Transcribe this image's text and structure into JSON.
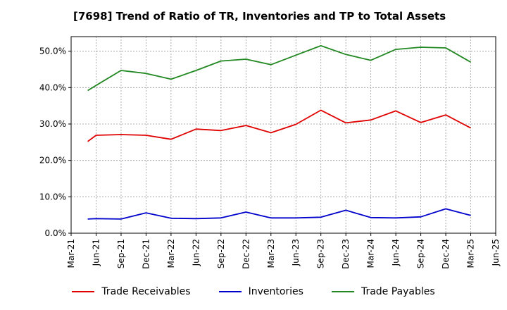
{
  "chart_data": {
    "type": "line",
    "title": "[7698]  Trend of Ratio of TR, Inventories and TP to Total Assets",
    "xlabel": "",
    "ylabel": "",
    "x_ticks": [
      "Mar-21",
      "Jun-21",
      "Sep-21",
      "Dec-21",
      "Mar-22",
      "Jun-22",
      "Sep-22",
      "Dec-22",
      "Mar-23",
      "Jun-23",
      "Sep-23",
      "Dec-23",
      "Mar-24",
      "Jun-24",
      "Sep-24",
      "Dec-24",
      "Mar-25",
      "Jun-25"
    ],
    "x": [
      "May-21",
      "Jun-21",
      "Sep-21",
      "Dec-21",
      "Mar-22",
      "Jun-22",
      "Sep-22",
      "Dec-22",
      "Mar-23",
      "Jun-23",
      "Sep-23",
      "Dec-23",
      "Mar-24",
      "Jun-24",
      "Sep-24",
      "Dec-24",
      "Mar-25"
    ],
    "ylim": [
      0,
      54
    ],
    "y_ticks": [
      0,
      10,
      20,
      30,
      40,
      50
    ],
    "y_tick_labels": [
      "0.0%",
      "10.0%",
      "20.0%",
      "30.0%",
      "40.0%",
      "50.0%"
    ],
    "grid": true,
    "legend_position": "bottom",
    "series": [
      {
        "name": "Trade Receivables",
        "color": "#e00000",
        "values": [
          25.2,
          26.9,
          27.1,
          26.9,
          25.8,
          28.6,
          28.2,
          29.6,
          27.6,
          29.9,
          33.8,
          30.3,
          31.1,
          33.6,
          30.4,
          32.5,
          28.9
        ]
      },
      {
        "name": "Inventories",
        "color": "#0000cc",
        "values": [
          3.9,
          4.0,
          3.9,
          5.6,
          4.1,
          4.0,
          4.2,
          5.8,
          4.2,
          4.2,
          4.4,
          6.3,
          4.3,
          4.2,
          4.5,
          6.7,
          4.9
        ]
      },
      {
        "name": "Trade Payables",
        "color": "#228822",
        "values": [
          39.2,
          40.6,
          44.7,
          43.9,
          42.3,
          44.7,
          47.3,
          47.8,
          46.3,
          48.9,
          51.5,
          49.1,
          47.5,
          50.5,
          51.1,
          50.9,
          47.0
        ]
      }
    ]
  }
}
